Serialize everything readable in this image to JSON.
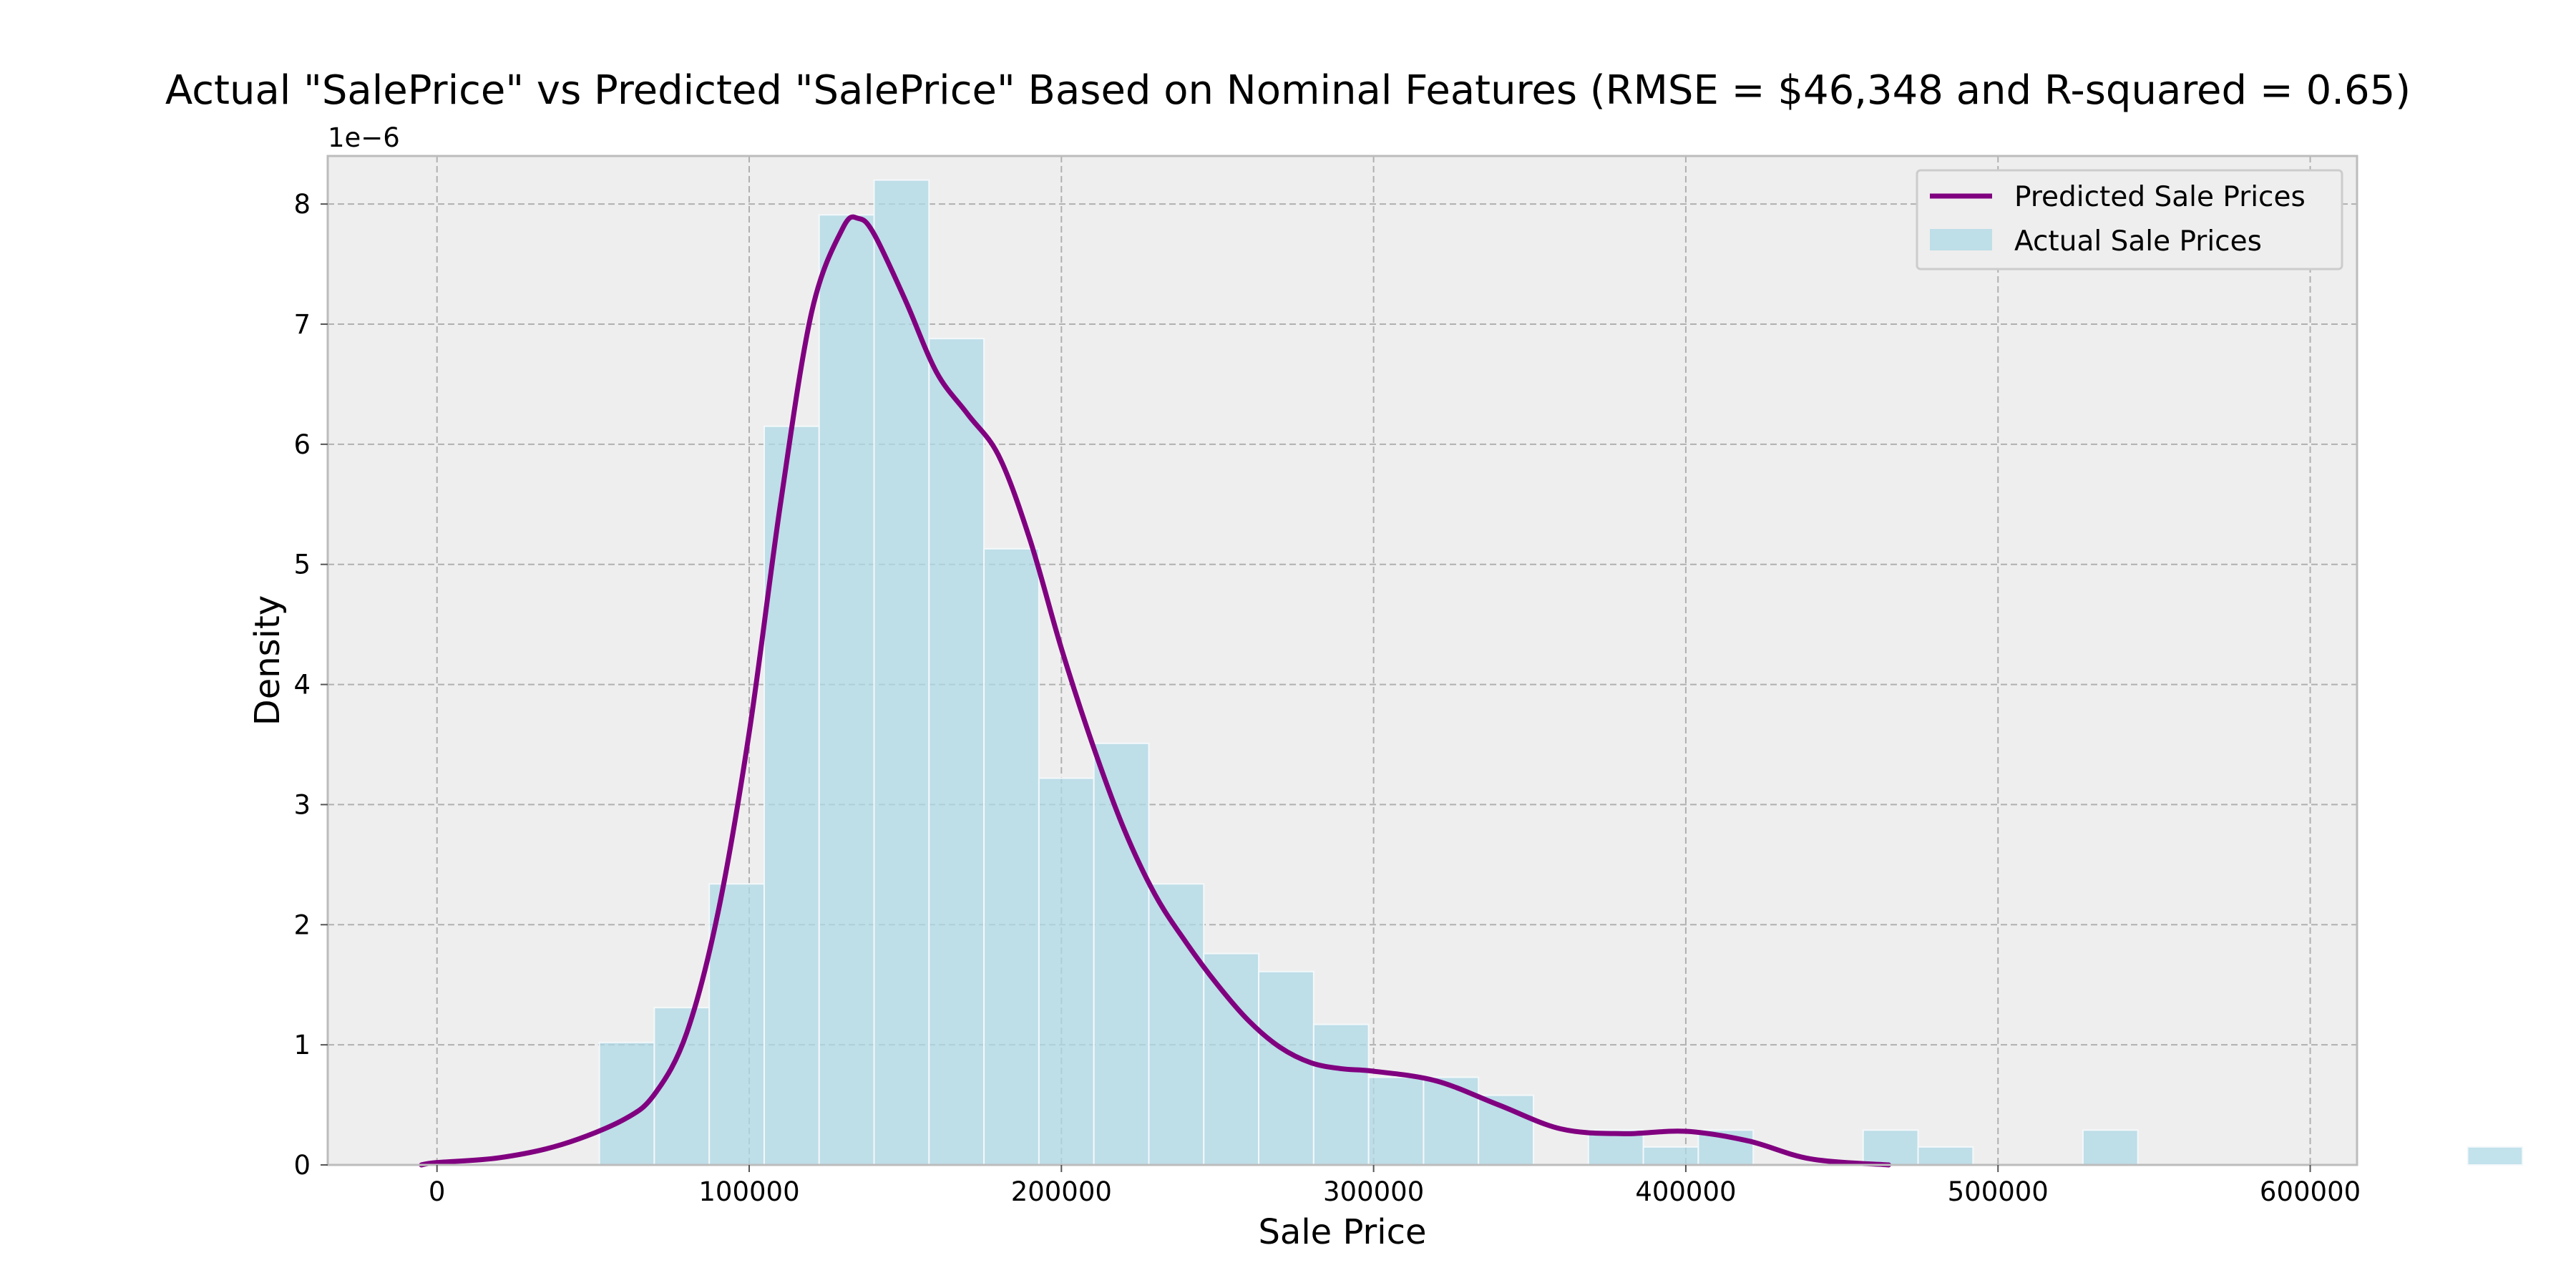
{
  "chart_data": {
    "type": "bar",
    "title": "Actual \"SalePrice\" vs Predicted \"SalePrice\" Based on Nominal Features (RMSE = $46,348 and R-squared = 0.65)",
    "xlabel": "Sale Price",
    "ylabel": "Density",
    "y_offset_label": "1e−6",
    "xlim": [
      -35000,
      615000
    ],
    "ylim": [
      0,
      8.4
    ],
    "xticks": [
      0,
      100000,
      200000,
      300000,
      400000,
      500000,
      600000
    ],
    "yticks": [
      0,
      1,
      2,
      3,
      4,
      5,
      6,
      7,
      8
    ],
    "grid": true,
    "legend_position": "top-right",
    "histogram": {
      "name": "Actual Sale Prices",
      "color": "#add8e6",
      "bin_start": 52000,
      "bin_width": 17600,
      "values": [
        1.02,
        1.31,
        2.34,
        6.15,
        7.91,
        8.2,
        6.88,
        5.13,
        3.22,
        3.51,
        2.34,
        1.76,
        1.61,
        1.17,
        0.73,
        0.73,
        0.58,
        0,
        0.29,
        0.15,
        0.29,
        0,
        0,
        0.29,
        0.15,
        0,
        0,
        0.29,
        0,
        0,
        0,
        0,
        0,
        0,
        0.15
      ]
    },
    "kde": {
      "name": "Predicted Sale Prices",
      "color": "#800080",
      "x": [
        -5000,
        0,
        20000,
        40000,
        60000,
        70000,
        80000,
        90000,
        100000,
        110000,
        120000,
        130000,
        135000,
        140000,
        150000,
        160000,
        170000,
        180000,
        190000,
        200000,
        210000,
        220000,
        230000,
        240000,
        250000,
        260000,
        270000,
        280000,
        290000,
        300000,
        320000,
        340000,
        360000,
        380000,
        400000,
        420000,
        440000,
        465000
      ],
      "y": [
        0.0,
        0.02,
        0.06,
        0.17,
        0.38,
        0.6,
        1.1,
        2.1,
        3.6,
        5.5,
        7.1,
        7.8,
        7.88,
        7.75,
        7.2,
        6.6,
        6.25,
        5.9,
        5.2,
        4.3,
        3.5,
        2.8,
        2.25,
        1.85,
        1.5,
        1.2,
        0.98,
        0.85,
        0.8,
        0.78,
        0.7,
        0.5,
        0.3,
        0.26,
        0.28,
        0.2,
        0.05,
        0.0
      ]
    }
  }
}
